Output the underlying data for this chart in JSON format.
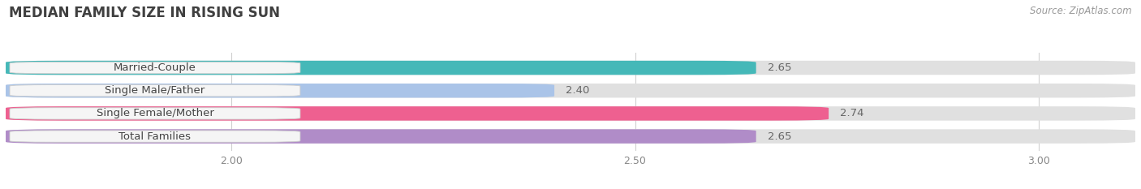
{
  "title": "MEDIAN FAMILY SIZE IN RISING SUN",
  "source": "Source: ZipAtlas.com",
  "categories": [
    "Married-Couple",
    "Single Male/Father",
    "Single Female/Mother",
    "Total Families"
  ],
  "values": [
    2.65,
    2.4,
    2.74,
    2.65
  ],
  "bar_colors": [
    "#45b8b8",
    "#aac4e8",
    "#ee6090",
    "#b08cc8"
  ],
  "bar_bg_color": "#e0e0e0",
  "xlim": [
    1.72,
    3.12
  ],
  "xticks": [
    2.0,
    2.5,
    3.0
  ],
  "bar_height": 0.62,
  "label_fontsize": 9.5,
  "value_fontsize": 9.5,
  "title_fontsize": 12,
  "source_fontsize": 8.5,
  "background_color": "#ffffff"
}
